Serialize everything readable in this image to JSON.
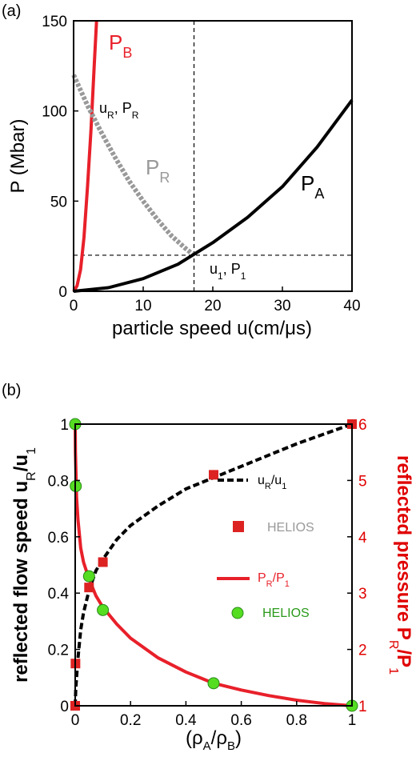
{
  "chart_data": [
    {
      "panel_label": "(a)",
      "type": "line",
      "xlabel": "particle speed u(cm/μs)",
      "ylabel": "P (Mbar)",
      "xlim": [
        0,
        40
      ],
      "ylim": [
        0,
        150
      ],
      "xticks": [
        "0",
        "10",
        "20",
        "30",
        "40"
      ],
      "yticks": [
        "0",
        "50",
        "100",
        "150"
      ],
      "series": [
        {
          "name": "P_B",
          "label_main": "P",
          "label_sub": "B",
          "color": "#e8202a",
          "style": "solid",
          "x": [
            0,
            0.5,
            1.0,
            1.5,
            2.0,
            2.5,
            3.0,
            3.3
          ],
          "y": [
            0,
            3,
            12,
            30,
            58,
            90,
            128,
            150
          ]
        },
        {
          "name": "P_R",
          "label_main": "P",
          "label_sub": "R",
          "color": "#999999",
          "style": "dotted",
          "x": [
            0,
            2,
            4,
            6,
            8,
            10,
            12,
            14,
            16,
            17.3
          ],
          "y": [
            120,
            103,
            88,
            74,
            61,
            50,
            40,
            31,
            24,
            20
          ]
        },
        {
          "name": "P_A",
          "label_main": "P",
          "label_sub": "A",
          "color": "#000000",
          "style": "solid",
          "x": [
            0,
            5,
            10,
            15,
            20,
            25,
            30,
            35,
            40
          ],
          "y": [
            0,
            2,
            7,
            15,
            27,
            41,
            58,
            80,
            106
          ]
        }
      ],
      "reference_lines": {
        "x": 17.3,
        "y": 20
      },
      "annotations": [
        {
          "main1": "u",
          "sub1": "R",
          "main2": ", P",
          "sub2": "R",
          "x": 8.8,
          "y": 90
        },
        {
          "main1": "u",
          "sub1": "1",
          "main2": ", P",
          "sub2": "1",
          "x": 21,
          "y": 10
        }
      ]
    },
    {
      "panel_label": "(b)",
      "type": "line",
      "xlabel": "(ρ_A/ρ_B)",
      "xlabel_parts": [
        "(ρ",
        "A",
        "/ρ",
        "B",
        ")"
      ],
      "ylabel_left": "reflected flow speed u_R/u_1",
      "ylabel_left_parts": [
        "reflected flow speed u",
        "R",
        "/u",
        "1"
      ],
      "ylabel_right": "reflected pressure P_R/P_1",
      "ylabel_right_parts": [
        "reflected pressure P",
        "R",
        "/P",
        "1"
      ],
      "xlim": [
        0,
        1
      ],
      "ylim_left": [
        0,
        1
      ],
      "ylim_right": [
        1,
        6
      ],
      "xticks": [
        "0",
        "0.2",
        "0.4",
        "0.6",
        "0.8",
        "1"
      ],
      "yticks_left": [
        "0",
        "0.2",
        "0.4",
        "0.6",
        "0.8",
        "1"
      ],
      "yticks_right": [
        "1",
        "2",
        "3",
        "4",
        "5",
        "6"
      ],
      "series": [
        {
          "name": "u_R/u_1",
          "axis": "left",
          "color": "#000000",
          "style": "dashed",
          "x": [
            0,
            0.002,
            0.005,
            0.01,
            0.02,
            0.03,
            0.05,
            0.075,
            0.1,
            0.15,
            0.2,
            0.3,
            0.4,
            0.5,
            0.6,
            0.7,
            0.8,
            0.9,
            1.0
          ],
          "y": [
            0,
            0.06,
            0.1,
            0.17,
            0.27,
            0.33,
            0.41,
            0.48,
            0.52,
            0.59,
            0.64,
            0.71,
            0.77,
            0.81,
            0.85,
            0.89,
            0.93,
            0.965,
            1.0
          ]
        },
        {
          "name": "HELIOS",
          "axis": "left",
          "marker": "square",
          "color": "#dd2222",
          "x": [
            0,
            0.001,
            0.05,
            0.1,
            0.5,
            1.0
          ],
          "y": [
            0,
            0.15,
            0.42,
            0.51,
            0.82,
            1.0
          ]
        },
        {
          "name": "P_R/P_1",
          "axis": "right",
          "color": "#e8202a",
          "style": "solid",
          "x": [
            0,
            0.001,
            0.005,
            0.01,
            0.02,
            0.03,
            0.05,
            0.075,
            0.1,
            0.15,
            0.2,
            0.3,
            0.4,
            0.5,
            0.6,
            0.7,
            0.8,
            0.9,
            1.0
          ],
          "y": [
            6.0,
            5.5,
            4.7,
            4.3,
            3.8,
            3.55,
            3.25,
            2.95,
            2.75,
            2.45,
            2.2,
            1.85,
            1.6,
            1.4,
            1.28,
            1.18,
            1.1,
            1.04,
            1.0
          ]
        },
        {
          "name": "HELIOS",
          "axis": "right",
          "marker": "circle",
          "color": "#55dd22",
          "x": [
            0,
            0.002,
            0.05,
            0.1,
            0.5,
            1.0
          ],
          "y": [
            6.0,
            4.9,
            3.3,
            2.7,
            1.4,
            1.0
          ]
        }
      ],
      "legend": [
        {
          "kind": "dashed-line",
          "main": "u",
          "sub1": "R",
          "mid": "/u",
          "sub2": "1",
          "color": "#000000",
          "text_color": "#000000"
        },
        {
          "kind": "square",
          "text": "HELIOS",
          "color": "#dd2222",
          "text_color": "#999999"
        },
        {
          "kind": "solid-line",
          "main": "P",
          "sub1": "R",
          "mid": "/P",
          "sub2": "1",
          "color": "#e8202a",
          "text_color": "#e8202a"
        },
        {
          "kind": "circle",
          "text": "HELIOS",
          "color": "#55dd22",
          "text_color": "#2a9a1a"
        }
      ]
    }
  ]
}
